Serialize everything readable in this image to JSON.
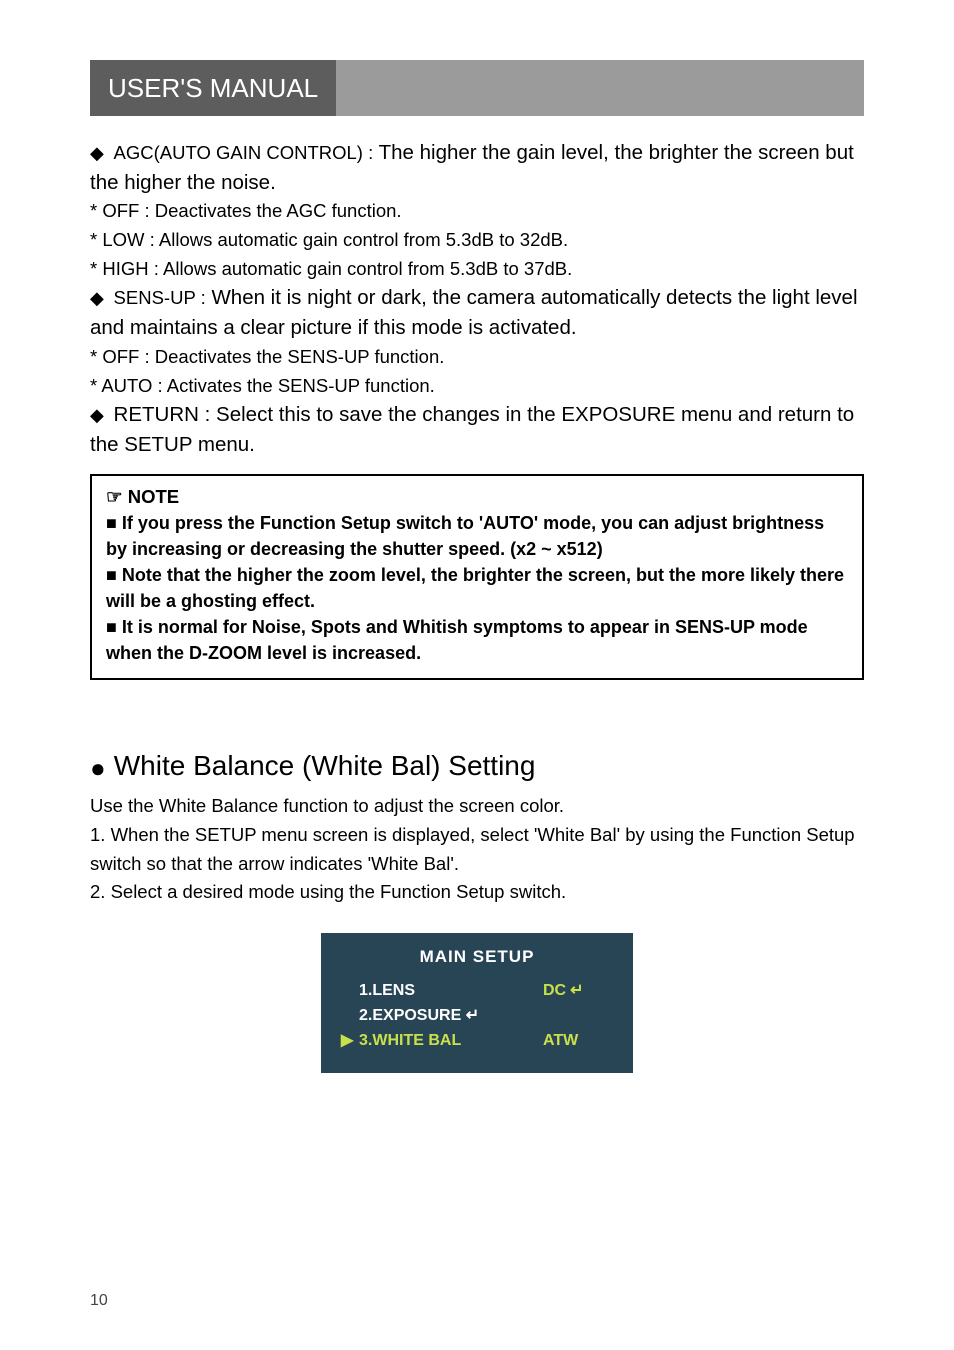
{
  "header": {
    "title": "USER'S MANUAL"
  },
  "agc": {
    "title_lead": "AGC(AUTO GAIN CONTROL) :",
    "title_body": "The higher the gain level, the brighter the screen but the higher the noise.",
    "off": "* OFF : Deactivates the AGC function.",
    "low": "* LOW : Allows automatic gain control from 5.3dB to 32dB.",
    "high": "* HIGH : Allows automatic gain control from 5.3dB to 37dB."
  },
  "sensup": {
    "title_lead": "SENS-UP :",
    "title_body": "When it is night or dark, the camera automatically detects the light level and maintains a clear picture if this mode is activated.",
    "off": "* OFF : Deactivates the SENS-UP function.",
    "auto": "* AUTO : Activates the SENS-UP function."
  },
  "return_line": "RETURN : Select this to save the changes in the EXPOSURE menu and return to the SETUP menu.",
  "note": {
    "heading": "☞ NOTE",
    "line1": "■ If you press the Function Setup switch to 'AUTO' mode, you can adjust brightness by increasing or decreasing the shutter speed. (x2 ~ x512)",
    "line2": "■ Note that the higher the zoom level, the brighter the screen, but the more likely there will be a ghosting effect.",
    "line3": "■ It is normal for Noise, Spots and Whitish symptoms to appear in SENS-UP mode when the D-ZOOM level is increased."
  },
  "wb": {
    "heading": "White Balance (White Bal) Setting",
    "intro": "Use the White Balance function to adjust the screen color.",
    "step1": "1. When the SETUP menu screen is displayed, select 'White Bal' by using the Function Setup switch so that the arrow indicates 'White Bal'.",
    "step2": "2. Select a desired mode using the Function Setup switch."
  },
  "osd": {
    "title": "MAIN SETUP",
    "row1_label": "1.LENS",
    "row1_val": "DC",
    "row2_label": "2.EXPOSURE",
    "row3_label": "3.WHITE BAL",
    "row3_val": "ATW"
  },
  "page_number": "10",
  "colors": {
    "header_bg": "#9b9b9b",
    "tab_bg": "#5d5d5d",
    "osd_bg": "#284556",
    "osd_accent": "#c9e04a"
  }
}
